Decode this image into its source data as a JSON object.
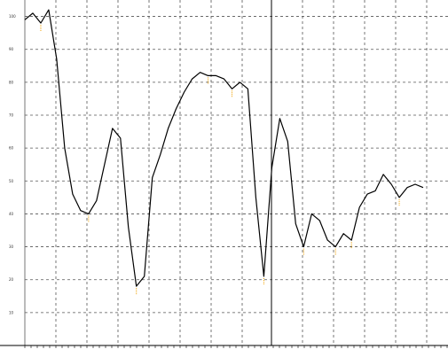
{
  "chart_data": {
    "type": "line",
    "title": "",
    "xlabel": "",
    "ylabel": "",
    "ylim": [
      0,
      105
    ],
    "y_ticks": [
      10,
      20,
      30,
      40,
      50,
      60,
      70,
      80,
      90,
      100
    ],
    "grid": true,
    "legend": "none",
    "series": [
      {
        "x": [
          0,
          2,
          4,
          6,
          8,
          10,
          12,
          14,
          16,
          18,
          20,
          22,
          24,
          26,
          28,
          30,
          32,
          34,
          36,
          38,
          40,
          42,
          44,
          46,
          48,
          50,
          52,
          54,
          56,
          58,
          60,
          62,
          64,
          66,
          68,
          70,
          72,
          74,
          76,
          78,
          80,
          82,
          84,
          86,
          88,
          90,
          92,
          94,
          96,
          98,
          100
        ],
        "values": [
          99,
          101,
          98,
          102,
          87,
          60,
          46,
          41,
          40,
          44,
          55,
          66,
          63,
          36,
          18,
          21,
          51,
          58,
          66,
          72,
          77,
          81,
          83,
          82,
          82,
          81,
          78,
          80,
          78,
          45,
          21,
          54,
          69,
          62,
          37,
          30,
          40,
          38,
          32,
          30,
          34,
          32,
          42,
          46,
          47,
          52,
          49,
          45,
          48,
          49,
          48
        ]
      }
    ],
    "line_color": "#000000",
    "grid_color": "#555555",
    "marker_color": "#f0a000"
  }
}
